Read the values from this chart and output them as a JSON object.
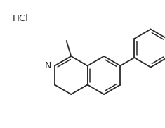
{
  "hcl_label": "HCl",
  "bg_color": "#ffffff",
  "line_color": "#2a2a2a",
  "line_width": 1.3,
  "figsize": [
    2.35,
    1.82
  ],
  "dpi": 100
}
